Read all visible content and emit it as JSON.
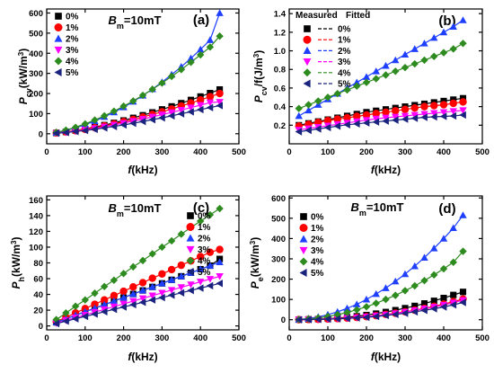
{
  "colors": {
    "0%": "#000000",
    "1%": "#ff0000",
    "2%": "#1f3fff",
    "3%": "#ff00ff",
    "4%": "#2e8b1f",
    "5%": "#1a237e"
  },
  "chart_data": [
    {
      "panel": "a",
      "type": "line",
      "ylabel_main": "P",
      "ylabel_sub": "cv",
      "ylabel_unit": "(kW/m",
      "ylabel_sup": "3",
      "ylabel_tail": ")",
      "xlabel_main": "f",
      "xlabel_unit": "(kHz)",
      "annotation_main": "B",
      "annotation_sub": "m",
      "annotation_tail": "=10mT",
      "letter": "(a)",
      "xlim": [
        0,
        500
      ],
      "ylim": [
        -50,
        620
      ],
      "xticks": [
        0,
        100,
        200,
        300,
        400,
        500
      ],
      "yticks": [
        0,
        100,
        200,
        300,
        400,
        500,
        600
      ],
      "legend_position": "top-left",
      "x": [
        25,
        50,
        75,
        100,
        125,
        150,
        175,
        200,
        225,
        250,
        275,
        300,
        325,
        350,
        375,
        400,
        425,
        450
      ],
      "series": [
        {
          "name": "0%",
          "marker": "square",
          "values": [
            4,
            9,
            16,
            24,
            33,
            43,
            54,
            66,
            79,
            92,
            106,
            121,
            136,
            152,
            168,
            185,
            202,
            220
          ]
        },
        {
          "name": "1%",
          "marker": "circle",
          "values": [
            4,
            9,
            15,
            22,
            30,
            39,
            49,
            60,
            71,
            83,
            96,
            109,
            123,
            138,
            153,
            168,
            184,
            200
          ]
        },
        {
          "name": "2%",
          "marker": "triangle-up",
          "values": [
            6,
            16,
            29,
            45,
            63,
            84,
            107,
            132,
            160,
            190,
            222,
            257,
            294,
            333,
            375,
            419,
            466,
            600
          ]
        },
        {
          "name": "3%",
          "marker": "triangle-down",
          "values": [
            3,
            7,
            13,
            20,
            27,
            35,
            44,
            53,
            63,
            73,
            84,
            95,
            106,
            118,
            130,
            142,
            155,
            158
          ]
        },
        {
          "name": "4%",
          "marker": "diamond",
          "values": [
            7,
            18,
            32,
            49,
            68,
            89,
            112,
            137,
            163,
            191,
            221,
            252,
            285,
            319,
            355,
            392,
            431,
            485
          ]
        },
        {
          "name": "5%",
          "marker": "triangle-left",
          "values": [
            3,
            6,
            11,
            16,
            22,
            29,
            36,
            44,
            52,
            61,
            70,
            79,
            89,
            99,
            109,
            120,
            130,
            140
          ]
        }
      ]
    },
    {
      "panel": "b",
      "type": "line",
      "ylabel_main": "P",
      "ylabel_sub": "cv",
      "ylabel_unit": "/f(J/m",
      "ylabel_sup": "3",
      "ylabel_tail": ")",
      "xlabel_main": "f",
      "xlabel_unit": "(kHz)",
      "letter": "(b)",
      "legend_header_measured": "Measured",
      "legend_header_fitted": "Fitted",
      "xlim": [
        0,
        500
      ],
      "ylim": [
        0,
        1.45
      ],
      "xticks": [
        0,
        100,
        200,
        300,
        400,
        500
      ],
      "yticks": [
        0.2,
        0.4,
        0.6,
        0.8,
        1.0,
        1.2,
        1.4
      ],
      "legend_position": "top-left",
      "x": [
        25,
        50,
        75,
        100,
        125,
        150,
        175,
        200,
        225,
        250,
        275,
        300,
        325,
        350,
        375,
        400,
        425,
        450
      ],
      "series": [
        {
          "name": "0%",
          "marker": "square",
          "values": [
            0.2,
            0.22,
            0.24,
            0.26,
            0.28,
            0.3,
            0.32,
            0.34,
            0.355,
            0.37,
            0.385,
            0.4,
            0.415,
            0.43,
            0.445,
            0.46,
            0.475,
            0.49
          ]
        },
        {
          "name": "1%",
          "marker": "circle",
          "values": [
            0.19,
            0.21,
            0.23,
            0.25,
            0.265,
            0.28,
            0.295,
            0.31,
            0.325,
            0.34,
            0.355,
            0.37,
            0.385,
            0.4,
            0.41,
            0.42,
            0.435,
            0.45
          ]
        },
        {
          "name": "2%",
          "marker": "triangle-up",
          "values": [
            0.3,
            0.36,
            0.42,
            0.48,
            0.54,
            0.6,
            0.66,
            0.72,
            0.78,
            0.84,
            0.9,
            0.96,
            1.02,
            1.08,
            1.14,
            1.2,
            1.26,
            1.33
          ]
        },
        {
          "name": "3%",
          "marker": "triangle-down",
          "values": [
            0.15,
            0.165,
            0.18,
            0.195,
            0.21,
            0.225,
            0.24,
            0.255,
            0.27,
            0.28,
            0.29,
            0.3,
            0.31,
            0.32,
            0.33,
            0.34,
            0.35,
            0.36
          ]
        },
        {
          "name": "4%",
          "marker": "diamond",
          "values": [
            0.38,
            0.42,
            0.46,
            0.5,
            0.54,
            0.58,
            0.62,
            0.66,
            0.7,
            0.74,
            0.78,
            0.82,
            0.86,
            0.9,
            0.94,
            0.98,
            1.02,
            1.08
          ]
        },
        {
          "name": "5%",
          "marker": "triangle-left",
          "values": [
            0.13,
            0.145,
            0.16,
            0.175,
            0.19,
            0.205,
            0.215,
            0.225,
            0.235,
            0.245,
            0.255,
            0.265,
            0.275,
            0.285,
            0.29,
            0.295,
            0.3,
            0.31
          ]
        }
      ]
    },
    {
      "panel": "c",
      "type": "line",
      "ylabel_main": "P",
      "ylabel_sub": "h",
      "ylabel_unit": "(kW/m",
      "ylabel_sup": "3",
      "ylabel_tail": ")",
      "xlabel_main": "f",
      "xlabel_unit": "(kHz)",
      "annotation_main": "B",
      "annotation_sub": "m",
      "annotation_tail": "=10mT",
      "letter": "(c)",
      "xlim": [
        0,
        500
      ],
      "ylim": [
        -5,
        165
      ],
      "xticks": [
        0,
        100,
        200,
        300,
        400,
        500
      ],
      "yticks": [
        0,
        20,
        40,
        60,
        80,
        100,
        120,
        140,
        160
      ],
      "legend_position": "top-right",
      "x": [
        25,
        50,
        75,
        100,
        125,
        150,
        175,
        200,
        225,
        250,
        275,
        300,
        325,
        350,
        375,
        400,
        425,
        450
      ],
      "series": [
        {
          "name": "0%",
          "marker": "square",
          "values": [
            4.5,
            9,
            13.5,
            18,
            22.5,
            27,
            31.5,
            36,
            40.5,
            45,
            49.5,
            54,
            58.5,
            63,
            67.5,
            72,
            76.5,
            85
          ]
        },
        {
          "name": "1%",
          "marker": "circle",
          "values": [
            5.5,
            11,
            16.5,
            22,
            27.5,
            33,
            38.5,
            44,
            49.5,
            55,
            60.5,
            66,
            71.5,
            77,
            82.5,
            88,
            93.5,
            97
          ]
        },
        {
          "name": "2%",
          "marker": "triangle-up",
          "values": [
            4.5,
            9,
            13.5,
            18,
            22.5,
            27,
            31.5,
            36,
            40.5,
            45,
            49.5,
            54,
            58.5,
            63,
            67.5,
            72,
            76.5,
            81
          ]
        },
        {
          "name": "3%",
          "marker": "triangle-down",
          "values": [
            3.5,
            7,
            10.5,
            14,
            17.5,
            21,
            24.5,
            28,
            31.5,
            35,
            38.5,
            42,
            45.5,
            49,
            52.5,
            56,
            59.5,
            63
          ]
        },
        {
          "name": "4%",
          "marker": "diamond",
          "values": [
            8,
            16.5,
            25,
            33,
            41.5,
            50,
            58,
            66.5,
            75,
            83,
            91.5,
            100,
            108,
            116.5,
            125,
            133,
            141,
            149
          ]
        },
        {
          "name": "5%",
          "marker": "triangle-left",
          "values": [
            3,
            6,
            9,
            12,
            15,
            18,
            21,
            24,
            27,
            30,
            33,
            36,
            39,
            42,
            45,
            48,
            51,
            54
          ]
        }
      ]
    },
    {
      "panel": "d",
      "type": "line",
      "ylabel_main": "P",
      "ylabel_sub": "e",
      "ylabel_unit": "(kW/m",
      "ylabel_sup": "3",
      "ylabel_tail": ")",
      "xlabel_main": "f",
      "xlabel_unit": "(kHz)",
      "annotation_main": "B",
      "annotation_sub": "m",
      "annotation_tail": "=10mT",
      "letter": "(d)",
      "xlim": [
        0,
        500
      ],
      "ylim": [
        -50,
        610
      ],
      "xticks": [
        0,
        100,
        200,
        300,
        400,
        500
      ],
      "yticks": [
        0,
        100,
        200,
        300,
        400,
        500,
        600
      ],
      "legend_position": "top-left",
      "x": [
        25,
        50,
        75,
        100,
        125,
        150,
        175,
        200,
        225,
        250,
        275,
        300,
        325,
        350,
        375,
        400,
        425,
        450
      ],
      "series": [
        {
          "name": "0%",
          "marker": "square",
          "values": [
            0.5,
            1.5,
            3,
            5,
            8,
            12,
            17,
            23,
            30,
            38,
            47,
            57,
            68,
            80,
            93,
            107,
            122,
            137
          ]
        },
        {
          "name": "1%",
          "marker": "circle",
          "values": [
            0.4,
            1,
            2,
            3.5,
            5.5,
            8,
            11,
            15,
            20,
            26,
            32,
            39,
            47,
            56,
            66,
            77,
            89,
            102
          ]
        },
        {
          "name": "2%",
          "marker": "triangle-up",
          "values": [
            1.5,
            6,
            14,
            25,
            39,
            56,
            76,
            100,
            127,
            156,
            189,
            225,
            264,
            306,
            352,
            400,
            452,
            515
          ]
        },
        {
          "name": "3%",
          "marker": "triangle-down",
          "values": [
            0.4,
            1,
            2,
            3.5,
            5.5,
            8,
            11,
            15,
            20,
            25,
            31,
            38,
            46,
            54,
            63,
            73,
            84,
            96
          ]
        },
        {
          "name": "4%",
          "marker": "diamond",
          "values": [
            1,
            4,
            9,
            16,
            25,
            36,
            49,
            64,
            81,
            100,
            120,
            143,
            167,
            193,
            221,
            251,
            283,
            337
          ]
        },
        {
          "name": "5%",
          "marker": "triangle-left",
          "values": [
            0.3,
            0.8,
            1.6,
            2.8,
            4.4,
            6.4,
            9,
            12,
            16,
            21,
            26,
            32,
            39,
            46,
            54,
            63,
            73,
            85
          ]
        }
      ]
    }
  ]
}
